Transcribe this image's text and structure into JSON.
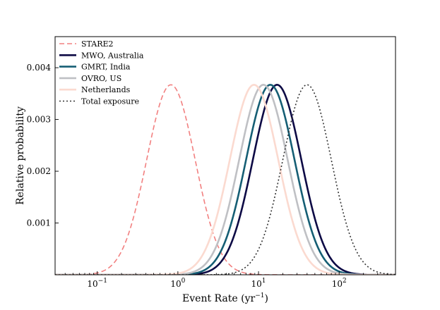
{
  "chart_data": {
    "type": "line",
    "title": "",
    "xlabel": "Event Rate (yr",
    "xlabel_sup": "−1",
    "xlabel_close": ")",
    "ylabel": "Relative probability",
    "xscale": "log",
    "xlim": [
      0.03,
      500
    ],
    "ylim": [
      0,
      0.0046
    ],
    "grid": false,
    "legend_placement": "top-left",
    "x_ticks": [
      {
        "value": 0.1,
        "base": "10",
        "exp": "−1"
      },
      {
        "value": 1,
        "base": "10",
        "exp": "0"
      },
      {
        "value": 10,
        "base": "10",
        "exp": "1"
      },
      {
        "value": 100,
        "base": "10",
        "exp": "2"
      }
    ],
    "y_ticks": [
      {
        "value": 0.001,
        "label": "0.001"
      },
      {
        "value": 0.002,
        "label": "0.002"
      },
      {
        "value": 0.003,
        "label": "0.003"
      },
      {
        "value": 0.004,
        "label": "0.004"
      }
    ],
    "series": [
      {
        "name": "STARE2",
        "color": "#f28080",
        "style": "dashed",
        "width": 1.6,
        "peak_x": 0.82,
        "peak_y": 0.00367,
        "log_sigma": 0.3
      },
      {
        "name": "MWO, Australia",
        "color": "#0d0a45",
        "style": "solid",
        "width": 2.6,
        "peak_x": 17,
        "peak_y": 0.00367,
        "log_sigma": 0.3
      },
      {
        "name": "GMRT, India",
        "color": "#155e74",
        "style": "solid",
        "width": 2.6,
        "peak_x": 14,
        "peak_y": 0.00367,
        "log_sigma": 0.3
      },
      {
        "name": "OVRO, US",
        "color": "#bfc0c4",
        "style": "solid",
        "width": 2.6,
        "peak_x": 11.5,
        "peak_y": 0.00367,
        "log_sigma": 0.3
      },
      {
        "name": "Netherlands",
        "color": "#fbdad0",
        "style": "solid",
        "width": 2.6,
        "peak_x": 8.8,
        "peak_y": 0.00367,
        "log_sigma": 0.3
      },
      {
        "name": "Total exposure",
        "color": "#333333",
        "style": "dotted",
        "width": 1.6,
        "peak_x": 40,
        "peak_y": 0.00367,
        "log_sigma": 0.3
      }
    ]
  }
}
